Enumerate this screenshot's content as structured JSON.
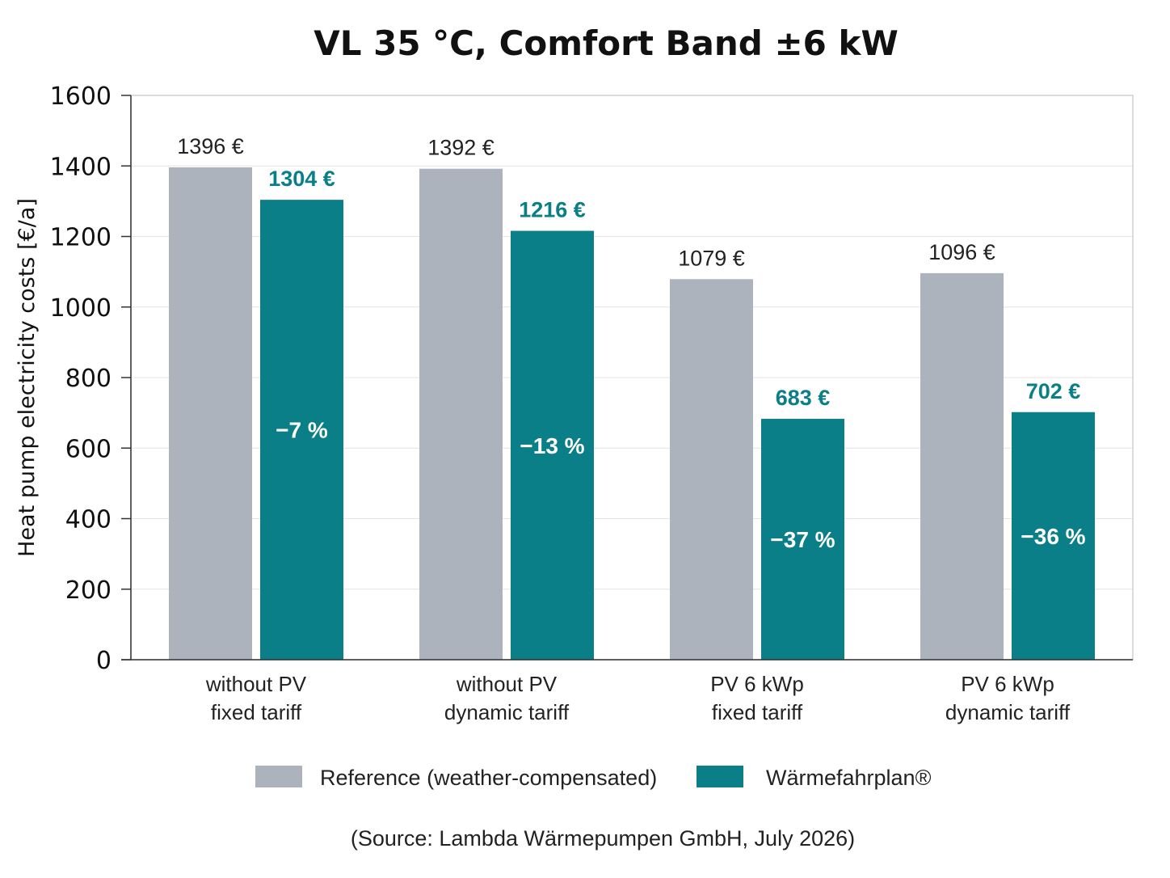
{
  "chart_data": {
    "type": "bar",
    "title": "VL 35 °C, Comfort Band ±6 kW",
    "ylabel": "Heat pump electricity costs [€/a]",
    "xlabel": "",
    "ylim": [
      0,
      1600
    ],
    "yticks": [
      0,
      200,
      400,
      600,
      800,
      1000,
      1200,
      1400,
      1600
    ],
    "grid": true,
    "categories": [
      [
        "without PV",
        "fixed tariff"
      ],
      [
        "without PV",
        "dynamic tariff"
      ],
      [
        "PV 6 kWp",
        "fixed tariff"
      ],
      [
        "PV 6 kWp",
        "dynamic tariff"
      ]
    ],
    "series": [
      {
        "name": "Reference (weather-compensated)",
        "color": "#adb3bd",
        "values": [
          1396,
          1392,
          1079,
          1096
        ],
        "labels": [
          "1396 €",
          "1392 €",
          "1079 €",
          "1096 €"
        ]
      },
      {
        "name": "Wärmefahrplan®",
        "color": "#0a7f87",
        "values": [
          1304,
          1216,
          683,
          702
        ],
        "labels": [
          "1304 €",
          "1216 €",
          "683 €",
          "702 €"
        ],
        "change_labels": [
          "−7 %",
          "−13 %",
          "−37 %",
          "−36 %"
        ]
      }
    ],
    "legend_position": "bottom",
    "source": "(Source: Lambda Wärmepumpen GmbH, July 2026)"
  }
}
